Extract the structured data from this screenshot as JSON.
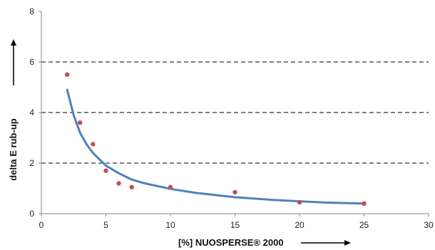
{
  "chart_data": {
    "type": "scatter",
    "xlabel": "[%]  NUOSPERSE® 2000",
    "ylabel": "delta E rub-up",
    "xlim": [
      0,
      30
    ],
    "ylim": [
      0,
      8
    ],
    "x_ticks": [
      0,
      5,
      10,
      15,
      20,
      25,
      30
    ],
    "y_ticks": [
      0,
      2,
      4,
      6,
      8
    ],
    "grid": "horizontal dashed",
    "series": [
      {
        "kind": "points",
        "color": "#c0504d",
        "x": [
          2,
          3,
          4,
          5,
          6,
          7,
          10,
          15,
          20,
          25
        ],
        "y": [
          5.5,
          3.6,
          2.75,
          1.7,
          1.2,
          1.05,
          1.05,
          0.85,
          0.45,
          0.4
        ]
      },
      {
        "kind": "trendline",
        "color": "#4f81bd",
        "x": [
          2,
          2.5,
          3,
          3.5,
          4,
          5,
          6,
          7,
          8,
          10,
          12,
          15,
          18,
          20,
          22,
          25
        ],
        "y": [
          4.9,
          3.9,
          3.2,
          2.75,
          2.4,
          1.9,
          1.6,
          1.35,
          1.2,
          0.98,
          0.82,
          0.65,
          0.54,
          0.49,
          0.44,
          0.4
        ]
      }
    ]
  }
}
